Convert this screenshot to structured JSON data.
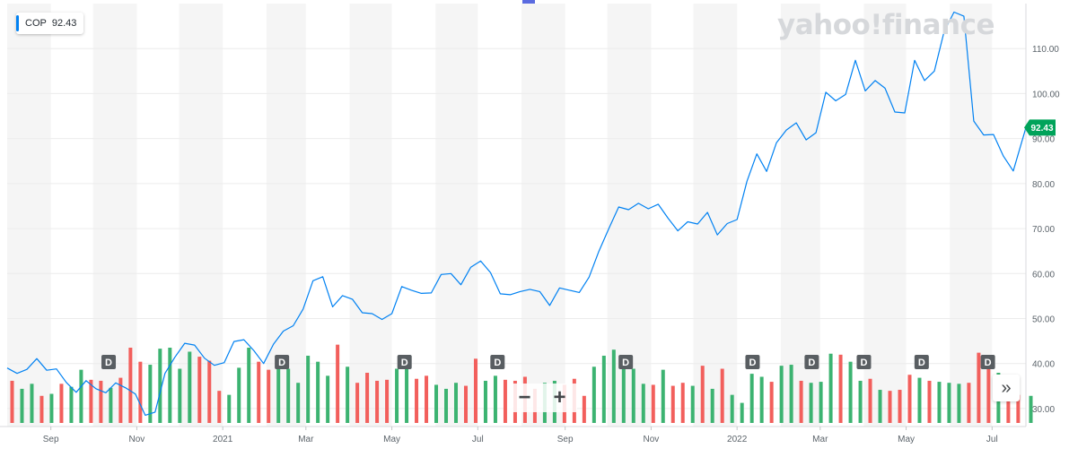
{
  "legend": {
    "symbol": "COP",
    "value": "92.43"
  },
  "logo_text": "yahoo!finance",
  "zoom": {
    "minus": "−",
    "plus": "+"
  },
  "nav_button": "»",
  "colors": {
    "line": "#0081f2",
    "up": "#3cb371",
    "down": "#f25f5c",
    "price_tag": "#00a35a",
    "shade": "#f5f5f5",
    "event": "#595e62"
  },
  "chart_data": {
    "type": "line",
    "ylim": [
      26,
      120
    ],
    "y_ticks": [
      30,
      40,
      50,
      60,
      70,
      80,
      90,
      100,
      110
    ],
    "y_tick_labels": [
      "30.00",
      "40.00",
      "50.00",
      "60.00",
      "70.00",
      "80.00",
      "90.00",
      "100.00",
      "110.00"
    ],
    "x_range": [
      "2020-08-01",
      "2022-07-25"
    ],
    "x_ticks": [
      {
        "label": "Sep",
        "date": "2020-09-01"
      },
      {
        "label": "Nov",
        "date": "2020-11-01"
      },
      {
        "label": "2021",
        "date": "2021-01-01"
      },
      {
        "label": "Mar",
        "date": "2021-03-01"
      },
      {
        "label": "May",
        "date": "2021-05-01"
      },
      {
        "label": "Jul",
        "date": "2021-07-01"
      },
      {
        "label": "Sep",
        "date": "2021-09-01"
      },
      {
        "label": "Nov",
        "date": "2021-11-01"
      },
      {
        "label": "2022",
        "date": "2022-01-01"
      },
      {
        "label": "Mar",
        "date": "2022-03-01"
      },
      {
        "label": "May",
        "date": "2022-05-01"
      },
      {
        "label": "Jul",
        "date": "2022-07-01"
      }
    ],
    "last_price": 92.43,
    "last_price_label": "92.43",
    "series": [
      {
        "x": [
          "2020-08-01",
          "2020-08-08",
          "2020-08-15",
          "2020-08-22",
          "2020-08-29",
          "2020-09-05",
          "2020-09-12",
          "2020-09-19",
          "2020-09-26",
          "2020-10-03",
          "2020-10-10",
          "2020-10-17",
          "2020-10-24",
          "2020-10-31",
          "2020-11-07",
          "2020-11-14",
          "2020-11-21",
          "2020-11-28",
          "2020-12-05",
          "2020-12-12",
          "2020-12-19",
          "2020-12-26",
          "2021-01-02",
          "2021-01-09",
          "2021-01-16",
          "2021-01-23",
          "2021-01-30",
          "2021-02-06",
          "2021-02-13",
          "2021-02-20",
          "2021-02-27",
          "2021-03-06",
          "2021-03-13",
          "2021-03-20",
          "2021-03-27",
          "2021-04-03",
          "2021-04-10",
          "2021-04-17",
          "2021-04-24",
          "2021-05-01",
          "2021-05-08",
          "2021-05-15",
          "2021-05-22",
          "2021-05-29",
          "2021-06-05",
          "2021-06-12",
          "2021-06-19",
          "2021-06-26",
          "2021-07-03",
          "2021-07-10",
          "2021-07-17",
          "2021-07-24",
          "2021-07-31",
          "2021-08-07",
          "2021-08-14",
          "2021-08-21",
          "2021-08-28",
          "2021-09-04",
          "2021-09-11",
          "2021-09-18",
          "2021-09-25",
          "2021-10-02",
          "2021-10-09",
          "2021-10-16",
          "2021-10-23",
          "2021-10-30",
          "2021-11-06",
          "2021-11-13",
          "2021-11-20",
          "2021-11-27",
          "2021-12-04",
          "2021-12-11",
          "2021-12-18",
          "2021-12-25",
          "2022-01-01",
          "2022-01-08",
          "2022-01-15",
          "2022-01-22",
          "2022-01-29",
          "2022-02-05",
          "2022-02-12",
          "2022-02-19",
          "2022-02-26",
          "2022-03-05",
          "2022-03-12",
          "2022-03-19",
          "2022-03-26",
          "2022-04-02",
          "2022-04-09",
          "2022-04-16",
          "2022-04-23",
          "2022-04-30",
          "2022-05-07",
          "2022-05-14",
          "2022-05-21",
          "2022-05-28",
          "2022-06-04",
          "2022-06-11",
          "2022-06-18",
          "2022-06-25",
          "2022-07-02",
          "2022-07-09",
          "2022-07-16",
          "2022-07-25"
        ],
        "y": [
          39.0,
          37.8,
          38.7,
          41.1,
          38.5,
          38.8,
          35.8,
          33.6,
          36.2,
          34.4,
          33.5,
          35.7,
          34.6,
          33.2,
          28.5,
          29.2,
          37.8,
          41.4,
          44.5,
          44.1,
          41.2,
          39.6,
          40.2,
          44.9,
          45.3,
          42.9,
          40.0,
          44.3,
          47.2,
          48.4,
          52.1,
          58.4,
          59.3,
          52.6,
          55.1,
          54.3,
          51.3,
          51.1,
          49.8,
          51.1,
          57.1,
          56.3,
          55.6,
          55.7,
          59.8,
          60.0,
          57.5,
          61.4,
          62.8,
          60.2,
          55.5,
          55.3,
          56.0,
          56.5,
          56.0,
          52.9,
          56.8,
          56.3,
          55.8,
          59.2,
          65.0,
          70.0,
          74.8,
          74.2,
          75.6,
          74.4,
          75.4,
          72.3,
          69.5,
          71.5,
          71.0,
          73.6,
          68.6,
          71.1,
          72.0,
          80.5,
          86.6,
          82.7,
          89.1,
          91.9,
          93.5,
          89.7,
          91.3,
          100.3,
          98.4,
          99.8,
          107.4,
          100.6,
          102.9,
          101.2,
          95.9,
          95.7,
          107.4,
          102.9,
          105.0,
          113.8,
          118.1,
          117.2,
          93.9,
          90.8,
          90.9,
          86.1,
          82.8,
          92.43
        ]
      }
    ],
    "volume_bars": [
      {
        "dir": "down",
        "v": 0.42
      },
      {
        "dir": "up",
        "v": 0.34
      },
      {
        "dir": "up",
        "v": 0.39
      },
      {
        "dir": "down",
        "v": 0.27
      },
      {
        "dir": "up",
        "v": 0.29
      },
      {
        "dir": "down",
        "v": 0.39
      },
      {
        "dir": "up",
        "v": 0.36
      },
      {
        "dir": "up",
        "v": 0.53
      },
      {
        "dir": "down",
        "v": 0.43
      },
      {
        "dir": "down",
        "v": 0.42
      },
      {
        "dir": "up",
        "v": 0.35
      },
      {
        "dir": "down",
        "v": 0.45
      },
      {
        "dir": "down",
        "v": 0.75
      },
      {
        "dir": "down",
        "v": 0.61
      },
      {
        "dir": "up",
        "v": 0.58
      },
      {
        "dir": "up",
        "v": 0.74
      },
      {
        "dir": "up",
        "v": 0.75
      },
      {
        "dir": "up",
        "v": 0.54
      },
      {
        "dir": "up",
        "v": 0.71
      },
      {
        "dir": "down",
        "v": 0.66
      },
      {
        "dir": "down",
        "v": 0.62
      },
      {
        "dir": "down",
        "v": 0.32
      },
      {
        "dir": "up",
        "v": 0.28
      },
      {
        "dir": "up",
        "v": 0.55
      },
      {
        "dir": "up",
        "v": 0.75
      },
      {
        "dir": "down",
        "v": 0.61
      },
      {
        "dir": "down",
        "v": 0.53
      },
      {
        "dir": "up",
        "v": 0.56
      },
      {
        "dir": "up",
        "v": 0.54
      },
      {
        "dir": "up",
        "v": 0.4
      },
      {
        "dir": "up",
        "v": 0.67
      },
      {
        "dir": "up",
        "v": 0.61
      },
      {
        "dir": "up",
        "v": 0.47
      },
      {
        "dir": "down",
        "v": 0.78
      },
      {
        "dir": "up",
        "v": 0.56
      },
      {
        "dir": "down",
        "v": 0.4
      },
      {
        "dir": "down",
        "v": 0.5
      },
      {
        "dir": "down",
        "v": 0.42
      },
      {
        "dir": "down",
        "v": 0.43
      },
      {
        "dir": "up",
        "v": 0.54
      },
      {
        "dir": "up",
        "v": 0.58
      },
      {
        "dir": "down",
        "v": 0.44
      },
      {
        "dir": "down",
        "v": 0.47
      },
      {
        "dir": "up",
        "v": 0.38
      },
      {
        "dir": "up",
        "v": 0.34
      },
      {
        "dir": "up",
        "v": 0.4
      },
      {
        "dir": "down",
        "v": 0.37
      },
      {
        "dir": "down",
        "v": 0.64
      },
      {
        "dir": "up",
        "v": 0.42
      },
      {
        "dir": "up",
        "v": 0.47
      },
      {
        "dir": "down",
        "v": 0.43
      },
      {
        "dir": "down",
        "v": 0.42
      },
      {
        "dir": "down",
        "v": 0.46
      },
      {
        "dir": "down",
        "v": 0.34
      },
      {
        "dir": "up",
        "v": 0.4
      },
      {
        "dir": "up",
        "v": 0.42
      },
      {
        "dir": "down",
        "v": 0.38
      },
      {
        "dir": "down",
        "v": 0.44
      },
      {
        "dir": "down",
        "v": 0.27
      },
      {
        "dir": "up",
        "v": 0.56
      },
      {
        "dir": "up",
        "v": 0.67
      },
      {
        "dir": "up",
        "v": 0.73
      },
      {
        "dir": "up",
        "v": 0.65
      },
      {
        "dir": "up",
        "v": 0.54
      },
      {
        "dir": "up",
        "v": 0.39
      },
      {
        "dir": "down",
        "v": 0.38
      },
      {
        "dir": "up",
        "v": 0.53
      },
      {
        "dir": "down",
        "v": 0.37
      },
      {
        "dir": "down",
        "v": 0.4
      },
      {
        "dir": "up",
        "v": 0.37
      },
      {
        "dir": "down",
        "v": 0.57
      },
      {
        "dir": "up",
        "v": 0.34
      },
      {
        "dir": "down",
        "v": 0.54
      },
      {
        "dir": "up",
        "v": 0.28
      },
      {
        "dir": "up",
        "v": 0.2
      },
      {
        "dir": "up",
        "v": 0.49
      },
      {
        "dir": "up",
        "v": 0.46
      },
      {
        "dir": "down",
        "v": 0.41
      },
      {
        "dir": "up",
        "v": 0.57
      },
      {
        "dir": "up",
        "v": 0.58
      },
      {
        "dir": "down",
        "v": 0.42
      },
      {
        "dir": "up",
        "v": 0.4
      },
      {
        "dir": "up",
        "v": 0.41
      },
      {
        "dir": "up",
        "v": 0.69
      },
      {
        "dir": "down",
        "v": 0.68
      },
      {
        "dir": "up",
        "v": 0.61
      },
      {
        "dir": "up",
        "v": 0.42
      },
      {
        "dir": "down",
        "v": 0.44
      },
      {
        "dir": "up",
        "v": 0.33
      },
      {
        "dir": "down",
        "v": 0.32
      },
      {
        "dir": "down",
        "v": 0.33
      },
      {
        "dir": "down",
        "v": 0.48
      },
      {
        "dir": "up",
        "v": 0.45
      },
      {
        "dir": "down",
        "v": 0.42
      },
      {
        "dir": "up",
        "v": 0.41
      },
      {
        "dir": "up",
        "v": 0.4
      },
      {
        "dir": "up",
        "v": 0.39
      },
      {
        "dir": "down",
        "v": 0.4
      },
      {
        "dir": "down",
        "v": 0.7
      },
      {
        "dir": "down",
        "v": 0.55
      },
      {
        "dir": "up",
        "v": 0.5
      },
      {
        "dir": "down",
        "v": 0.28
      },
      {
        "dir": "down",
        "v": 0.28
      },
      {
        "dir": "up",
        "v": 0.27
      }
    ],
    "dividend_markers": [
      {
        "date": "2020-10-12",
        "label": "D"
      },
      {
        "date": "2021-02-12",
        "label": "D"
      },
      {
        "date": "2021-05-10",
        "label": "D"
      },
      {
        "date": "2021-07-15",
        "label": "D"
      },
      {
        "date": "2021-10-14",
        "label": "D"
      },
      {
        "date": "2022-01-12",
        "label": "D"
      },
      {
        "date": "2022-02-23",
        "label": "D"
      },
      {
        "date": "2022-04-01",
        "label": "D"
      },
      {
        "date": "2022-05-12",
        "label": "D"
      },
      {
        "date": "2022-06-28",
        "label": "D"
      }
    ]
  }
}
